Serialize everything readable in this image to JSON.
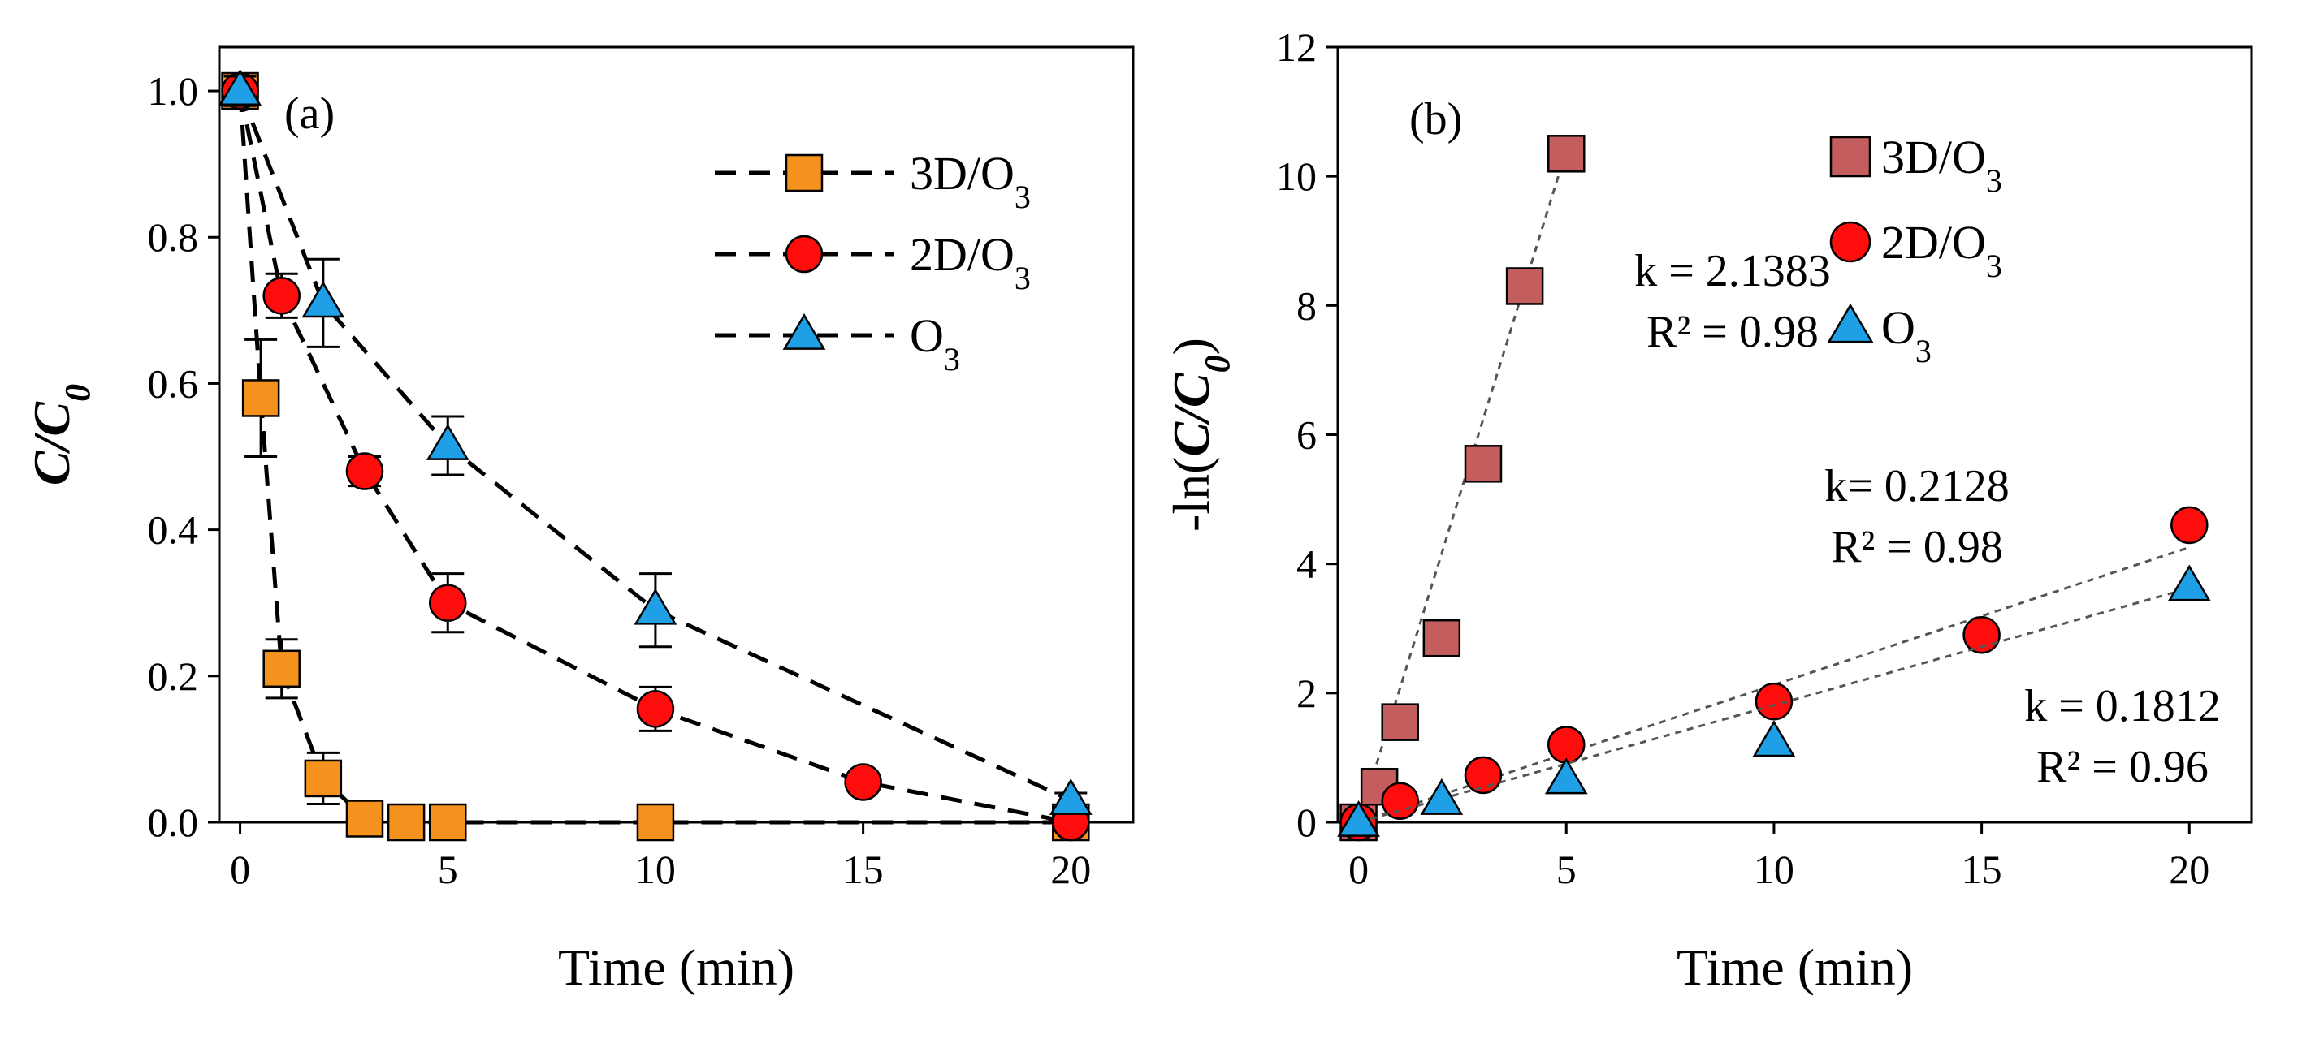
{
  "chart_data": [
    {
      "type": "line",
      "panel_label": "(a)",
      "xlabel": "Time (min)",
      "ylabel": {
        "main": "C/C",
        "sub": "0"
      },
      "xlim": [
        -0.5,
        21.5
      ],
      "ylim": [
        0,
        1.06
      ],
      "xticks": [
        0,
        5,
        10,
        15,
        20
      ],
      "xtick_labels": [
        "0",
        "5",
        "10",
        "15",
        "20"
      ],
      "yticks": [
        0,
        0.2,
        0.4,
        0.6,
        0.8,
        1.0
      ],
      "ytick_labels": [
        "0.0",
        "0.2",
        "0.4",
        "0.6",
        "0.8",
        "1.0"
      ],
      "grid": false,
      "legend_position": "top-right",
      "series": [
        {
          "name": {
            "main": "3D/O",
            "sub": "3"
          },
          "marker": "square",
          "color": "#f5921e",
          "x": [
            0,
            0.5,
            1,
            2,
            3,
            4,
            5,
            10,
            20
          ],
          "y": [
            1.0,
            0.58,
            0.21,
            0.06,
            0.005,
            0.0,
            0.0,
            0.0,
            0.0
          ],
          "err": [
            0.02,
            0.08,
            0.04,
            0.035,
            0.01,
            0.0,
            0.0,
            0.0,
            0.0
          ]
        },
        {
          "name": {
            "main": "2D/O",
            "sub": "3"
          },
          "marker": "circle",
          "color": "#ff0d0d",
          "x": [
            0,
            1,
            3,
            5,
            10,
            15,
            20
          ],
          "y": [
            1.0,
            0.72,
            0.48,
            0.3,
            0.155,
            0.055,
            0.0
          ],
          "err": [
            0.02,
            0.03,
            0.02,
            0.04,
            0.03,
            0.01,
            0.01
          ]
        },
        {
          "name": {
            "main": "O",
            "sub": "3"
          },
          "marker": "triangle",
          "color": "#1fa0e6",
          "x": [
            0,
            2,
            5,
            10,
            20
          ],
          "y": [
            1.0,
            0.71,
            0.515,
            0.29,
            0.03
          ],
          "err": [
            0.02,
            0.06,
            0.04,
            0.05,
            0.01
          ]
        }
      ]
    },
    {
      "type": "scatter",
      "panel_label": "(b)",
      "xlabel": "Time (min)",
      "ylabel": {
        "pre": "-ln(",
        "main": "C/C",
        "sub": "0",
        "post": ")"
      },
      "xlim": [
        -0.5,
        21.5
      ],
      "ylim": [
        0,
        12
      ],
      "xticks": [
        0,
        5,
        10,
        15,
        20
      ],
      "xtick_labels": [
        "0",
        "5",
        "10",
        "15",
        "20"
      ],
      "yticks": [
        0,
        2,
        4,
        6,
        8,
        10,
        12
      ],
      "ytick_labels": [
        "0",
        "2",
        "4",
        "6",
        "8",
        "10",
        "12"
      ],
      "grid": false,
      "legend_position": "top-right",
      "series": [
        {
          "name": {
            "main": "3D/O",
            "sub": "3"
          },
          "marker": "square",
          "color": "#c45e5e",
          "x": [
            0,
            0.5,
            1,
            2,
            3,
            4,
            5
          ],
          "y": [
            0,
            0.55,
            1.55,
            2.85,
            5.55,
            8.3,
            10.35
          ],
          "fit": {
            "x": [
              0,
              5
            ],
            "y": [
              0,
              10.4
            ]
          }
        },
        {
          "name": {
            "main": "2D/O",
            "sub": "3"
          },
          "marker": "circle",
          "color": "#ff0d0d",
          "x": [
            0,
            1,
            3,
            5,
            10,
            15,
            20
          ],
          "y": [
            0,
            0.33,
            0.73,
            1.2,
            1.87,
            2.9,
            4.6
          ],
          "fit": {
            "x": [
              0,
              20
            ],
            "y": [
              0,
              4.256
            ]
          }
        },
        {
          "name": {
            "main": "O",
            "sub": "3"
          },
          "marker": "triangle",
          "color": "#1fa0e6",
          "x": [
            0,
            2,
            5,
            10,
            20
          ],
          "y": [
            0,
            0.34,
            0.66,
            1.24,
            3.65
          ],
          "fit": {
            "x": [
              0,
              20
            ],
            "y": [
              0,
              3.624
            ]
          }
        }
      ],
      "annotations": [
        {
          "lines": [
            "k = 2.1383",
            "R² = 0.98"
          ]
        },
        {
          "lines": [
            "k= 0.2128",
            "R² = 0.98"
          ]
        },
        {
          "lines": [
            "k = 0.1812",
            "R² = 0.96"
          ]
        }
      ]
    }
  ]
}
